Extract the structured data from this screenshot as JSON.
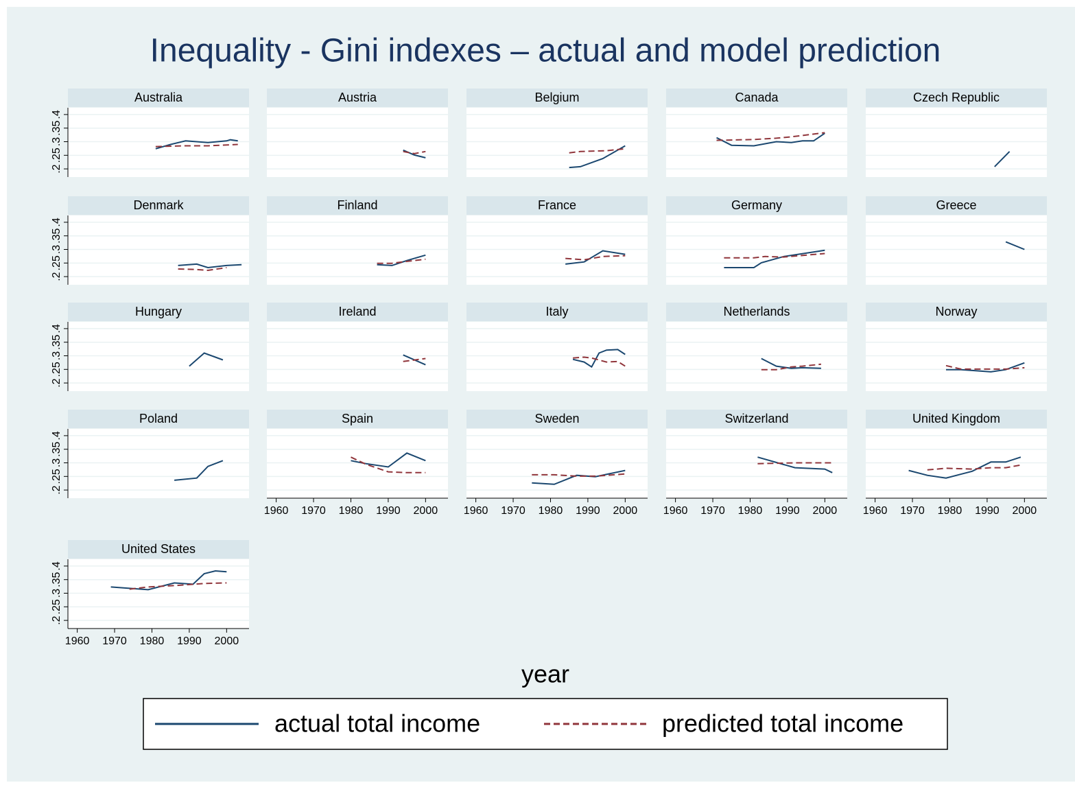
{
  "chart_data": {
    "type": "line",
    "title": "Inequality - Gini indexes – actual and model prediction",
    "x_label": "year",
    "xlim": [
      1957.5,
      2006
    ],
    "xticks": [
      1960,
      1970,
      1980,
      1990,
      2000
    ],
    "ylim": [
      0.17,
      0.425
    ],
    "yticks": [
      {
        "value": 0.2,
        "label": ".2"
      },
      {
        "value": 0.25,
        "label": ".25"
      },
      {
        "value": 0.3,
        "label": ".3"
      },
      {
        "value": 0.35,
        "label": ".35"
      },
      {
        "value": 0.4,
        "label": ".4"
      }
    ],
    "grid": true,
    "series": [
      {
        "name": "actual total income",
        "color": "#1a476f",
        "dash": "solid"
      },
      {
        "name": "predicted total income",
        "color": "#90353b",
        "dash": "dashed"
      }
    ],
    "panels": [
      {
        "title": "Australia",
        "series": [
          {
            "x": [
              1981,
              1985,
              1989,
              1995,
              2000,
              2001,
              2003
            ],
            "values": [
              0.274,
              0.29,
              0.303,
              0.297,
              0.303,
              0.307,
              0.303
            ]
          },
          {
            "x": [
              1981,
              1989,
              1995,
              2003
            ],
            "values": [
              0.282,
              0.285,
              0.285,
              0.29
            ]
          }
        ]
      },
      {
        "title": "Austria",
        "series": [
          {
            "x": [
              1994,
              1997,
              2000
            ],
            "values": [
              0.269,
              0.251,
              0.241
            ]
          },
          {
            "x": [
              1994,
              1997,
              2000
            ],
            "values": [
              0.264,
              0.256,
              0.264
            ]
          }
        ]
      },
      {
        "title": "Belgium",
        "series": [
          {
            "x": [
              1985,
              1988,
              1994,
              2000
            ],
            "values": [
              0.205,
              0.208,
              0.238,
              0.285
            ]
          },
          {
            "x": [
              1985,
              1988,
              1995,
              2000
            ],
            "values": [
              0.259,
              0.264,
              0.267,
              0.274
            ]
          }
        ]
      },
      {
        "title": "Canada",
        "series": [
          {
            "x": [
              1971,
              1975,
              1981,
              1987,
              1991,
              1994,
              1997,
              2000
            ],
            "values": [
              0.315,
              0.287,
              0.285,
              0.3,
              0.297,
              0.303,
              0.303,
              0.331
            ]
          },
          {
            "x": [
              1971,
              1981,
              1987,
              1991,
              1994,
              1997,
              2000
            ],
            "values": [
              0.305,
              0.308,
              0.313,
              0.318,
              0.323,
              0.328,
              0.333
            ]
          }
        ]
      },
      {
        "title": "Czech Republic",
        "series": [
          {
            "x": [
              1992,
              1996
            ],
            "values": [
              0.208,
              0.264
            ]
          }
        ]
      },
      {
        "title": "Denmark",
        "series": [
          {
            "x": [
              1987,
              1992,
              1995,
              2000,
              2004
            ],
            "values": [
              0.241,
              0.246,
              0.233,
              0.241,
              0.244
            ]
          },
          {
            "x": [
              1987,
              1992,
              1995,
              2000
            ],
            "values": [
              0.228,
              0.226,
              0.223,
              0.233
            ]
          }
        ]
      },
      {
        "title": "Finland",
        "series": [
          {
            "x": [
              1987,
              1991,
              1995,
              2000
            ],
            "values": [
              0.244,
              0.241,
              0.259,
              0.279
            ]
          },
          {
            "x": [
              1987,
              1991,
              1995,
              2000
            ],
            "values": [
              0.249,
              0.249,
              0.256,
              0.264
            ]
          }
        ]
      },
      {
        "title": "France",
        "series": [
          {
            "x": [
              1984,
              1989,
              1994,
              2000
            ],
            "values": [
              0.246,
              0.254,
              0.295,
              0.282
            ]
          },
          {
            "x": [
              1984,
              1989,
              1994,
              2000
            ],
            "values": [
              0.267,
              0.262,
              0.274,
              0.277
            ]
          }
        ]
      },
      {
        "title": "Germany",
        "series": [
          {
            "x": [
              1973,
              1981,
              1983,
              1989,
              2000
            ],
            "values": [
              0.233,
              0.233,
              0.251,
              0.274,
              0.297
            ]
          },
          {
            "x": [
              1973,
              1981,
              1984,
              1989,
              2000
            ],
            "values": [
              0.269,
              0.269,
              0.274,
              0.272,
              0.285
            ]
          }
        ]
      },
      {
        "title": "Greece",
        "series": [
          {
            "x": [
              1995,
              2000
            ],
            "values": [
              0.328,
              0.3
            ]
          }
        ]
      },
      {
        "title": "Hungary",
        "series": [
          {
            "x": [
              1990,
              1994,
              1999
            ],
            "values": [
              0.262,
              0.31,
              0.285
            ]
          }
        ]
      },
      {
        "title": "Ireland",
        "series": [
          {
            "x": [
              1994,
              2000
            ],
            "values": [
              0.303,
              0.267
            ]
          },
          {
            "x": [
              1994,
              2000
            ],
            "values": [
              0.279,
              0.29
            ]
          }
        ]
      },
      {
        "title": "Italy",
        "series": [
          {
            "x": [
              1986,
              1989,
              1991,
              1993,
              1995,
              1998,
              2000
            ],
            "values": [
              0.287,
              0.277,
              0.259,
              0.31,
              0.321,
              0.323,
              0.305
            ]
          },
          {
            "x": [
              1986,
              1989,
              1991,
              1995,
              1998,
              2000
            ],
            "values": [
              0.292,
              0.295,
              0.292,
              0.277,
              0.279,
              0.262
            ]
          }
        ]
      },
      {
        "title": "Netherlands",
        "series": [
          {
            "x": [
              1983,
              1987,
              1991,
              1994,
              1999
            ],
            "values": [
              0.29,
              0.262,
              0.254,
              0.256,
              0.254
            ]
          },
          {
            "x": [
              1983,
              1987,
              1991,
              1994,
              1999
            ],
            "values": [
              0.249,
              0.249,
              0.259,
              0.262,
              0.269
            ]
          }
        ]
      },
      {
        "title": "Norway",
        "series": [
          {
            "x": [
              1979,
              1983,
              1986,
              1991,
              1995,
              2000
            ],
            "values": [
              0.249,
              0.249,
              0.246,
              0.241,
              0.249,
              0.274
            ]
          },
          {
            "x": [
              1979,
              1983,
              1991,
              1995,
              2000
            ],
            "values": [
              0.264,
              0.251,
              0.251,
              0.251,
              0.256
            ]
          }
        ]
      },
      {
        "title": "Poland",
        "series": [
          {
            "x": [
              1986,
              1992,
              1995,
              1999
            ],
            "values": [
              0.236,
              0.244,
              0.287,
              0.308
            ]
          }
        ]
      },
      {
        "title": "Spain",
        "series": [
          {
            "x": [
              1980,
              1984,
              1990,
              1995,
              2000
            ],
            "values": [
              0.308,
              0.297,
              0.285,
              0.336,
              0.308
            ]
          },
          {
            "x": [
              1980,
              1984,
              1990,
              1995,
              2000
            ],
            "values": [
              0.321,
              0.295,
              0.267,
              0.264,
              0.264
            ]
          }
        ]
      },
      {
        "title": "Sweden",
        "series": [
          {
            "x": [
              1975,
              1981,
              1987,
              1992,
              2000
            ],
            "values": [
              0.226,
              0.221,
              0.254,
              0.249,
              0.272
            ]
          },
          {
            "x": [
              1975,
              1981,
              1987,
              1992,
              2000
            ],
            "values": [
              0.256,
              0.256,
              0.251,
              0.251,
              0.259
            ]
          }
        ]
      },
      {
        "title": "Switzerland",
        "series": [
          {
            "x": [
              1982,
              1992,
              2000,
              2002
            ],
            "values": [
              0.321,
              0.282,
              0.277,
              0.264
            ]
          },
          {
            "x": [
              1982,
              1992,
              2000,
              2002
            ],
            "values": [
              0.297,
              0.3,
              0.3,
              0.3
            ]
          }
        ]
      },
      {
        "title": "United Kingdom",
        "series": [
          {
            "x": [
              1969,
              1974,
              1979,
              1986,
              1991,
              1995,
              1999
            ],
            "values": [
              0.272,
              0.254,
              0.244,
              0.269,
              0.303,
              0.303,
              0.321
            ]
          },
          {
            "x": [
              1974,
              1979,
              1986,
              1991,
              1995,
              1999
            ],
            "values": [
              0.274,
              0.28,
              0.277,
              0.282,
              0.282,
              0.292
            ]
          }
        ]
      },
      {
        "title": "United States",
        "series": [
          {
            "x": [
              1969,
              1974,
              1979,
              1986,
              1991,
              1994,
              1997,
              2000
            ],
            "values": [
              0.323,
              0.318,
              0.313,
              0.338,
              0.333,
              0.372,
              0.382,
              0.379
            ]
          },
          {
            "x": [
              1974,
              1979,
              1986,
              1994,
              2000
            ],
            "values": [
              0.315,
              0.323,
              0.328,
              0.336,
              0.338
            ]
          }
        ]
      }
    ]
  }
}
